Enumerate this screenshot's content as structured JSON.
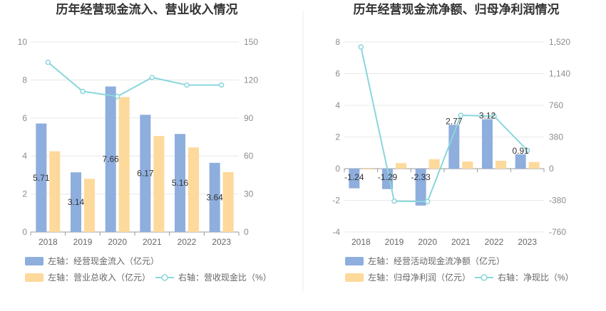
{
  "chart_data": [
    {
      "type": "bar",
      "title": "历年经营现金流入、营业收入情况",
      "categories": [
        "2018",
        "2019",
        "2020",
        "2021",
        "2022",
        "2023"
      ],
      "left_axis": {
        "min": 0,
        "max": 10,
        "ticks": [
          "0",
          "2",
          "4",
          "6",
          "8",
          "10"
        ]
      },
      "right_axis": {
        "min": 0,
        "max": 150,
        "ticks": [
          "0",
          "30",
          "60",
          "90",
          "120",
          "150"
        ]
      },
      "series": [
        {
          "name": "左轴：经营现金流入（亿元）",
          "type": "bar",
          "axis": "left",
          "color": "#8eaedd",
          "values": [
            5.71,
            3.14,
            7.66,
            6.17,
            5.16,
            3.64
          ],
          "labels": [
            "5.71",
            "3.14",
            "7.66",
            "6.17",
            "5.16",
            "3.64"
          ]
        },
        {
          "name": "左轴：营业总收入（亿元）",
          "type": "bar",
          "axis": "left",
          "color": "#fdd99b",
          "values": [
            4.25,
            2.8,
            7.1,
            5.05,
            4.45,
            3.15
          ]
        },
        {
          "name": "右轴：营收现金比（%）",
          "type": "line",
          "axis": "right",
          "color": "#8ad6dc",
          "values": [
            134,
            111,
            107,
            122,
            116,
            116
          ]
        }
      ],
      "grid": true,
      "legend": "bottom"
    },
    {
      "type": "bar",
      "title": "历年经营现金流净额、归母净利润情况",
      "categories": [
        "2018",
        "2019",
        "2020",
        "2021",
        "2022",
        "2023"
      ],
      "left_axis": {
        "min": -4,
        "max": 8,
        "ticks": [
          "-4",
          "-2",
          "0",
          "2",
          "4",
          "6",
          "8"
        ]
      },
      "right_axis": {
        "min": -760,
        "max": 1520,
        "ticks": [
          "-760",
          "-380",
          "0",
          "380",
          "760",
          "1,140",
          "1,520"
        ]
      },
      "series": [
        {
          "name": "左轴：经营活动现金流净额（亿元）",
          "type": "bar",
          "axis": "left",
          "color": "#8eaedd",
          "values": [
            -1.24,
            -1.29,
            -2.33,
            2.77,
            3.12,
            0.91
          ],
          "labels": [
            "-1.24",
            "-1.29",
            "-2.33",
            "2.77",
            "3.12",
            "0.91"
          ]
        },
        {
          "name": "左轴：归母净利润（亿元）",
          "type": "bar",
          "axis": "left",
          "color": "#fdd99b",
          "values": [
            -0.05,
            0.35,
            0.6,
            0.45,
            0.5,
            0.42
          ]
        },
        {
          "name": "右轴：净现比（%）",
          "type": "line",
          "axis": "right",
          "color": "#8ad6dc",
          "values": [
            1460,
            -390,
            -395,
            640,
            630,
            220
          ]
        }
      ],
      "grid": true,
      "legend": "bottom"
    }
  ]
}
